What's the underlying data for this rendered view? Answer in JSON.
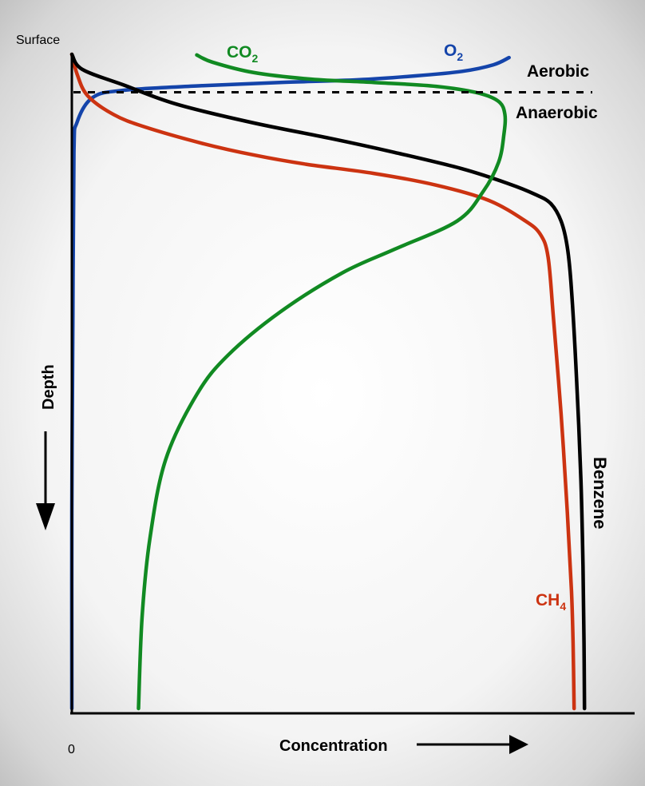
{
  "chart_data": {
    "type": "line",
    "title": "",
    "xlabel": "Concentration",
    "ylabel": "Depth",
    "x_origin_label": "0",
    "y_top_label": "Surface",
    "x_range": [
      0,
      100
    ],
    "y_range": [
      0,
      100
    ],
    "grid": false,
    "zones": {
      "boundary_depth": 5.8,
      "upper_label": "Aerobic",
      "lower_label": "Anaerobic"
    },
    "series": [
      {
        "name": "Benzene",
        "color": "#000000",
        "points": [
          [
            0,
            0
          ],
          [
            2,
            2.3
          ],
          [
            10,
            4.7
          ],
          [
            20,
            7.6
          ],
          [
            35,
            10.5
          ],
          [
            50,
            12.9
          ],
          [
            62,
            15.0
          ],
          [
            75,
            17.5
          ],
          [
            84,
            19.8
          ],
          [
            89,
            21.4
          ],
          [
            92,
            22.8
          ],
          [
            94,
            25.5
          ],
          [
            95.2,
            29.5
          ],
          [
            96,
            36
          ],
          [
            97,
            50
          ],
          [
            97.8,
            65
          ],
          [
            98.2,
            78
          ],
          [
            98.4,
            90
          ],
          [
            98.5,
            100
          ]
        ]
      },
      {
        "name": "CH₄",
        "color": "#cc3311",
        "points": [
          [
            0,
            0
          ],
          [
            1,
            3.0
          ],
          [
            3,
            6.3
          ],
          [
            8,
            9.2
          ],
          [
            14,
            11.1
          ],
          [
            25,
            13.6
          ],
          [
            35,
            15.4
          ],
          [
            45,
            16.8
          ],
          [
            58,
            18.2
          ],
          [
            70,
            20.0
          ],
          [
            80,
            22.3
          ],
          [
            87,
            25.4
          ],
          [
            90,
            27.5
          ],
          [
            91.5,
            31
          ],
          [
            92.5,
            40
          ],
          [
            94,
            55
          ],
          [
            95.2,
            70
          ],
          [
            96,
            82
          ],
          [
            96.3,
            90
          ],
          [
            96.5,
            100
          ]
        ]
      },
      {
        "name": "CO₂",
        "color": "#118a22",
        "points": [
          [
            24,
            0.1
          ],
          [
            27,
            1.2
          ],
          [
            35,
            2.8
          ],
          [
            46,
            3.8
          ],
          [
            58,
            4.3
          ],
          [
            70,
            4.9
          ],
          [
            78,
            5.9
          ],
          [
            82,
            7.2
          ],
          [
            83.2,
            9.2
          ],
          [
            83,
            12.3
          ],
          [
            82,
            16.5
          ],
          [
            79,
            21.0
          ],
          [
            74,
            25.5
          ],
          [
            62,
            29.8
          ],
          [
            52,
            33.4
          ],
          [
            40,
            39.4
          ],
          [
            30,
            46.0
          ],
          [
            24,
            52.0
          ],
          [
            18,
            62.0
          ],
          [
            15,
            74.0
          ],
          [
            13.5,
            86.0
          ],
          [
            12.8,
            100
          ]
        ]
      },
      {
        "name": "O₂",
        "color": "#1444aa",
        "points": [
          [
            0,
            100
          ],
          [
            0,
            70
          ],
          [
            0.2,
            40
          ],
          [
            0.4,
            15
          ],
          [
            1,
            10.4
          ],
          [
            4,
            6.6
          ],
          [
            10,
            5.5
          ],
          [
            25,
            4.8
          ],
          [
            40,
            4.3
          ],
          [
            55,
            3.9
          ],
          [
            66,
            3.3
          ],
          [
            75,
            2.6
          ],
          [
            81,
            1.6
          ],
          [
            84,
            0.5
          ]
        ]
      }
    ]
  }
}
